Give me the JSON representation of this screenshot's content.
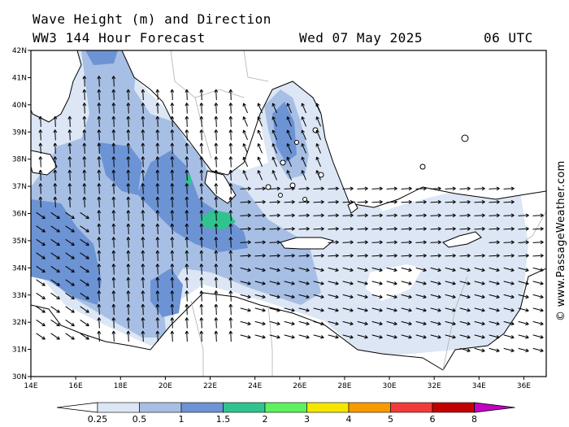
{
  "title": {
    "line1": "Wave Height (m) and Direction",
    "line2": "WW3 144 Hour Forecast",
    "date": "Wed 07 May 2025",
    "time": "06 UTC"
  },
  "watermark": "© www.PassageWeather.com",
  "map": {
    "lon_range": [
      14,
      37
    ],
    "lat_range": [
      30,
      42
    ],
    "lon_ticks": [
      "14E",
      "16E",
      "18E",
      "20E",
      "22E",
      "24E",
      "26E",
      "28E",
      "30E",
      "32E",
      "34E",
      "36E"
    ],
    "lat_ticks": [
      "30N",
      "31N",
      "32N",
      "33N",
      "34N",
      "35N",
      "36N",
      "37N",
      "38N",
      "39N",
      "40N",
      "41N",
      "42N"
    ]
  },
  "colorbar": {
    "labels": [
      "0.25",
      "0.5",
      "1",
      "1.5",
      "2",
      "3",
      "4",
      "5",
      "6",
      "8"
    ],
    "colors": [
      "#dce6f5",
      "#a7bfe4",
      "#6c93d4",
      "#31c38f",
      "#5ef05e",
      "#f5e600",
      "#f79a00",
      "#f23a3a",
      "#c20000",
      "#c400c4"
    ]
  },
  "colors": {
    "land": "#ffffff",
    "sea_calm": "#ffffff",
    "coast": "#000000",
    "border": "#b0b0b0"
  }
}
